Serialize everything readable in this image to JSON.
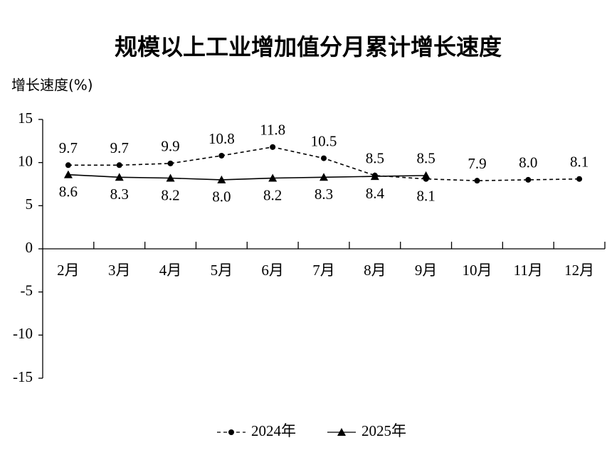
{
  "chart_data": {
    "type": "line",
    "title": "规模以上工业增加值分月累计增长速度",
    "y_axis_label": "增长速度(%)",
    "categories": [
      "2月",
      "3月",
      "4月",
      "5月",
      "6月",
      "7月",
      "8月",
      "9月",
      "10月",
      "11月",
      "12月"
    ],
    "series": [
      {
        "name": "2024年",
        "color": "#000000",
        "dashed": true,
        "marker": "circle",
        "values": [
          9.7,
          9.7,
          9.9,
          10.8,
          11.8,
          10.5,
          8.5,
          8.1,
          7.9,
          8.0,
          8.1
        ],
        "value_labels": [
          "9.7",
          "9.7",
          "9.9",
          "10.8",
          "11.8",
          "10.5",
          "8.5",
          "8.1",
          "7.9",
          "8.0",
          "8.1"
        ]
      },
      {
        "name": "2025年",
        "color": "#000000",
        "dashed": false,
        "marker": "triangle",
        "values": [
          8.6,
          8.3,
          8.2,
          8.0,
          8.2,
          8.3,
          8.4,
          8.5,
          null,
          null,
          null
        ],
        "value_labels": [
          "8.6",
          "8.3",
          "8.2",
          "8.0",
          "8.2",
          "8.3",
          "8.4",
          "8.5",
          null,
          null,
          null
        ]
      }
    ],
    "ylim": [
      -15,
      15
    ],
    "yticks": [
      -15,
      -10,
      -5,
      0,
      5,
      10,
      15
    ],
    "grid": false,
    "legend": "bottom"
  }
}
